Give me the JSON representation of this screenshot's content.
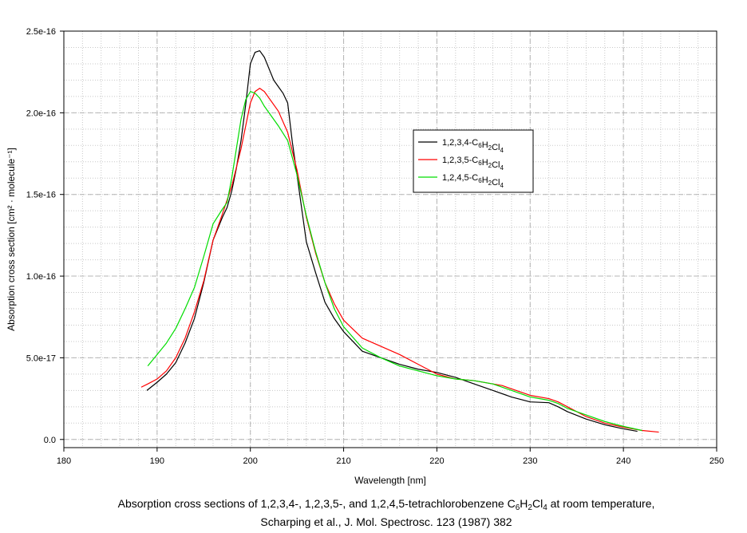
{
  "chart_data": {
    "type": "line",
    "xlabel": "Wavelength [nm]",
    "ylabel": "Absorption cross section [cm² · molecule⁻¹]",
    "xlim": [
      180,
      250
    ],
    "ylim": [
      -5e-18,
      2.5e-16
    ],
    "x_ticks": [
      "180",
      "190",
      "200",
      "210",
      "220",
      "230",
      "240",
      "250"
    ],
    "x_tick_values": [
      180,
      190,
      200,
      210,
      220,
      230,
      240,
      250
    ],
    "y_ticks": [
      "0.0",
      "5.0e-17",
      "1.0e-16",
      "1.5e-16",
      "2.0e-16",
      "2.5e-16"
    ],
    "y_tick_values": [
      0,
      5e-17,
      1e-16,
      1.5e-16,
      2e-16,
      2.5e-16
    ],
    "grid": true,
    "legend_position": "center-right",
    "series": [
      {
        "name": "1,2,3,4-C6H2Cl4",
        "name_parts": [
          "1,2,3,4-C",
          "6",
          "H",
          "2",
          "Cl",
          "4"
        ],
        "color": "#000000",
        "x": [
          188.9,
          190,
          191,
          192,
          193,
          194,
          195,
          196,
          197,
          197.5,
          198,
          198.5,
          199,
          199.5,
          200,
          200.5,
          201,
          201.5,
          202,
          202.5,
          203,
          203.5,
          204,
          204.5,
          205,
          206,
          207,
          208,
          209,
          210,
          212,
          214,
          216,
          218,
          220,
          222,
          224,
          226,
          228,
          230,
          232,
          233,
          234,
          236,
          238,
          240,
          241.5
        ],
        "y": [
          3e-17,
          3.5e-17,
          4e-17,
          4.7e-17,
          5.9e-17,
          7.4e-17,
          9.6e-17,
          1.22e-16,
          1.36e-16,
          1.42e-16,
          1.52e-16,
          1.66e-16,
          1.83e-16,
          2.05e-16,
          2.3e-16,
          2.37e-16,
          2.38e-16,
          2.34e-16,
          2.27e-16,
          2.2e-16,
          2.16e-16,
          2.12e-16,
          2.06e-16,
          1.82e-16,
          1.62e-16,
          1.21e-16,
          1.02e-16,
          8.4e-17,
          7.4e-17,
          6.6e-17,
          5.4e-17,
          5e-17,
          4.6e-17,
          4.3e-17,
          4.1e-17,
          3.8e-17,
          3.4e-17,
          3e-17,
          2.6e-17,
          2.3e-17,
          2.25e-17,
          2e-17,
          1.7e-17,
          1.25e-17,
          9e-18,
          6.5e-18,
          5e-18
        ]
      },
      {
        "name": "1,2,3,5-C6H2Cl4",
        "name_parts": [
          "1,2,3,5-C",
          "6",
          "H",
          "2",
          "Cl",
          "4"
        ],
        "color": "#ff0000",
        "x": [
          188.3,
          189,
          190,
          191,
          192,
          193,
          194,
          195,
          196,
          197,
          198,
          199,
          199.5,
          200,
          200.5,
          201,
          201.5,
          202,
          203,
          204,
          205,
          206,
          207,
          208,
          209,
          210,
          212,
          214,
          216,
          218,
          220,
          222,
          224,
          226,
          227,
          228,
          230,
          232,
          233,
          234,
          236,
          238,
          240,
          242,
          243.8
        ],
        "y": [
          3.2e-17,
          3.4e-17,
          3.7e-17,
          4.2e-17,
          5e-17,
          6.2e-17,
          7.8e-17,
          9.7e-17,
          1.22e-16,
          1.38e-16,
          1.55e-16,
          1.78e-16,
          1.92e-16,
          2.06e-16,
          2.13e-16,
          2.15e-16,
          2.13e-16,
          2.09e-16,
          2.01e-16,
          1.88e-16,
          1.65e-16,
          1.36e-16,
          1.14e-16,
          9.6e-17,
          8.3e-17,
          7.3e-17,
          6.2e-17,
          5.7e-17,
          5.2e-17,
          4.6e-17,
          4e-17,
          3.7e-17,
          3.6e-17,
          3.4e-17,
          3.3e-17,
          3.1e-17,
          2.7e-17,
          2.5e-17,
          2.3e-17,
          2e-17,
          1.4e-17,
          1e-17,
          7.5e-18,
          5.5e-18,
          4.5e-18
        ]
      },
      {
        "name": "1,2,4,5-C6H2Cl4",
        "name_parts": [
          "1,2,4,5-C",
          "6",
          "H",
          "2",
          "Cl",
          "4"
        ],
        "color": "#00dd00",
        "x": [
          189,
          190,
          191,
          192,
          193,
          194,
          195,
          196,
          197,
          197.5,
          198,
          198.5,
          199,
          199.5,
          200,
          200.5,
          201,
          201.5,
          202,
          203,
          204,
          205,
          206,
          207,
          208,
          209,
          210,
          212,
          214,
          216,
          218,
          220,
          222,
          224,
          226,
          228,
          230,
          232,
          233,
          234,
          236,
          238,
          240,
          242
        ],
        "y": [
          4.5e-17,
          5.2e-17,
          5.9e-17,
          6.8e-17,
          8e-17,
          9.3e-17,
          1.12e-16,
          1.32e-16,
          1.41e-16,
          1.45e-16,
          1.6e-16,
          1.78e-16,
          1.96e-16,
          2.08e-16,
          2.13e-16,
          2.12e-16,
          2.09e-16,
          2.04e-16,
          2e-16,
          1.92e-16,
          1.83e-16,
          1.62e-16,
          1.37e-16,
          1.15e-16,
          9.6e-17,
          8e-17,
          6.9e-17,
          5.6e-17,
          5e-17,
          4.5e-17,
          4.2e-17,
          3.9e-17,
          3.7e-17,
          3.6e-17,
          3.4e-17,
          3e-17,
          2.6e-17,
          2.4e-17,
          2.2e-17,
          1.9e-17,
          1.5e-17,
          1.1e-17,
          8e-18,
          5.5e-18
        ]
      }
    ]
  },
  "caption": {
    "line1_prefix": "Absorption cross sections of 1,2,3,4-, 1,2,3,5-, and 1,2,4,5-tetrachlorobenzene C",
    "line1_sub1": "6",
    "line1_mid1": "H",
    "line1_sub2": "2",
    "line1_mid2": "Cl",
    "line1_sub3": "4",
    "line1_suffix": " at room temperature,",
    "line2": "Scharping et al., J. Mol. Spectrosc. 123 (1987) 382"
  }
}
